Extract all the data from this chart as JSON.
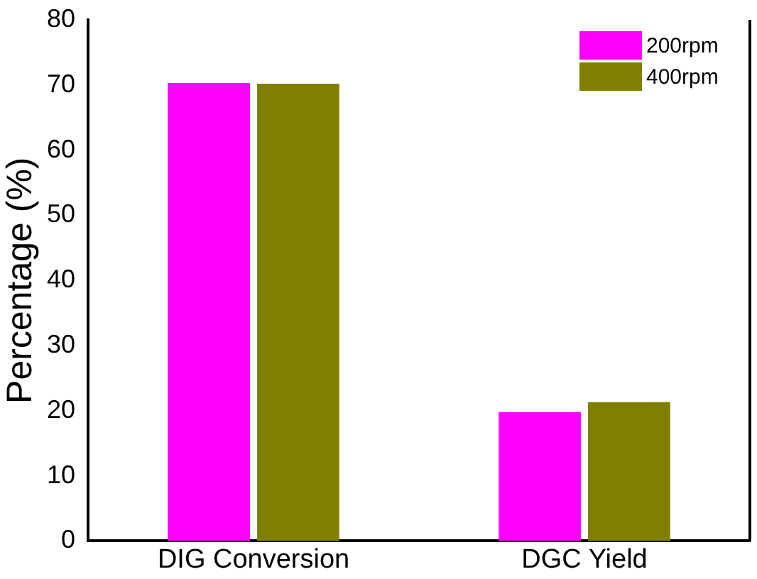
{
  "chart_data": {
    "type": "bar",
    "ylabel": "Percentage (%)",
    "categories": [
      "DIG Conversion",
      "DGC Yield"
    ],
    "series": [
      {
        "name": "200rpm",
        "color": "#ff00ff",
        "values": [
          70.3,
          19.8
        ]
      },
      {
        "name": "400rpm",
        "color": "#808000",
        "values": [
          70.2,
          21.3
        ]
      }
    ],
    "ylim": [
      0,
      80
    ],
    "yticks": [
      0,
      10,
      20,
      30,
      40,
      50,
      60,
      70,
      80
    ],
    "legend": "top right"
  }
}
